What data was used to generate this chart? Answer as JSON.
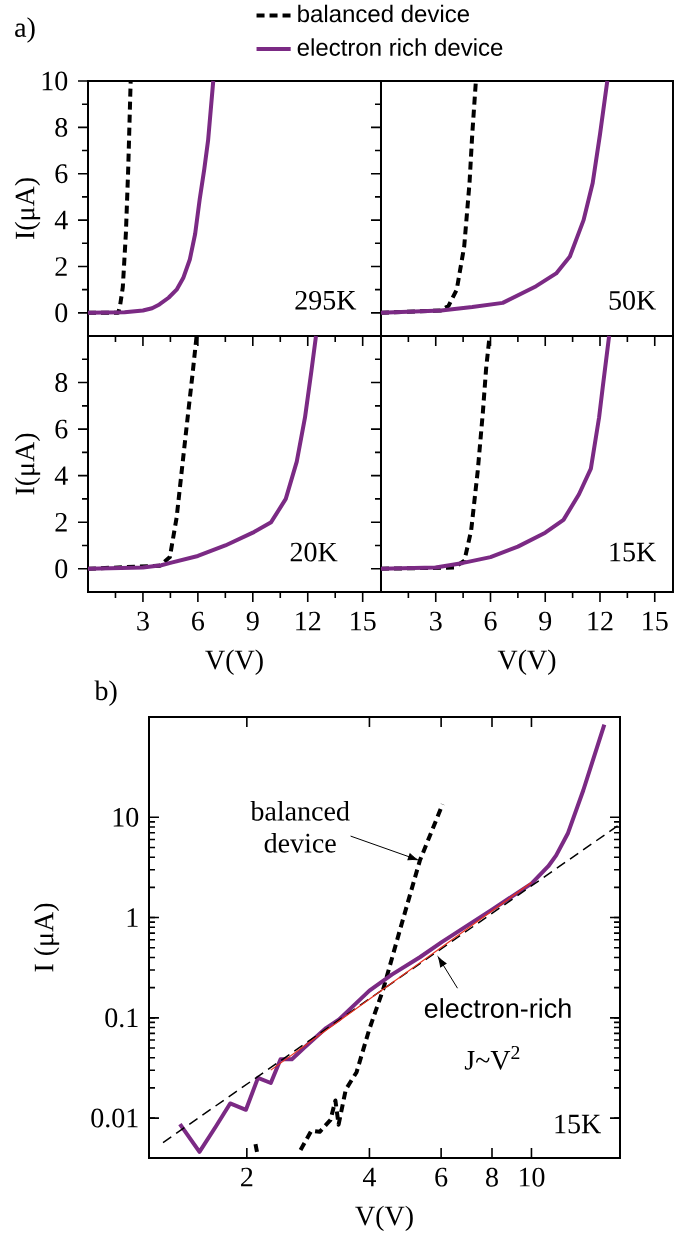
{
  "chart_data": [
    {
      "type": "line",
      "annotations": [
        "a)",
        "295K"
      ],
      "xlim": [
        0,
        16
      ],
      "ylim": [
        -1,
        10
      ],
      "xticks": [
        3,
        6,
        9,
        12,
        15
      ],
      "yticks": [
        0,
        2,
        4,
        6,
        8,
        10
      ],
      "tick_labels": "y",
      "ylabel": "I(μA)",
      "legend": "top",
      "series": [
        {
          "name": "balanced device",
          "color": "#000000",
          "line_style": "dashed",
          "x": [
            0,
            1.65,
            1.75,
            1.9,
            2.07,
            2.2,
            2.33
          ],
          "values": [
            0,
            0,
            0.3,
            1.1,
            3.45,
            6.3,
            10
          ]
        },
        {
          "name": "electron rich device",
          "color": "#7b2a84",
          "line_style": "solid",
          "x": [
            0,
            2,
            3,
            3.5,
            3.9,
            4.4,
            4.84,
            5.2,
            5.56,
            5.85,
            6.1,
            6.35,
            6.56,
            6.84
          ],
          "values": [
            0,
            0.03,
            0.1,
            0.2,
            0.36,
            0.65,
            1.0,
            1.5,
            2.3,
            3.4,
            4.9,
            6.2,
            7.45,
            10
          ]
        }
      ]
    },
    {
      "type": "line",
      "annotations": [
        "50K"
      ],
      "xlim": [
        0,
        16
      ],
      "ylim": [
        -1,
        10
      ],
      "xticks": [
        3,
        6,
        9,
        12,
        15
      ],
      "yticks": [
        0,
        2,
        4,
        6,
        8,
        10
      ],
      "tick_labels": false,
      "series": [
        {
          "color": "#000000",
          "line_style": "dashed",
          "x": [
            0,
            3.27,
            3.7,
            4.15,
            4.56,
            4.85,
            5.0,
            5.2
          ],
          "values": [
            0,
            0.1,
            0.3,
            1.0,
            2.87,
            5.6,
            7.7,
            10
          ]
        },
        {
          "color": "#7b2a84",
          "line_style": "solid",
          "x": [
            0,
            3.3,
            5,
            6.67,
            8.5,
            9.6,
            10.35,
            11.1,
            11.6,
            12.0,
            12.4
          ],
          "values": [
            0,
            0.1,
            0.25,
            0.43,
            1.15,
            1.7,
            2.43,
            4.0,
            5.6,
            7.7,
            10
          ]
        }
      ]
    },
    {
      "type": "line",
      "annotations": [
        "20K"
      ],
      "xlim": [
        0,
        16
      ],
      "ylim": [
        -1,
        10
      ],
      "xticks": [
        3,
        6,
        9,
        12,
        15
      ],
      "yticks": [
        0,
        2,
        4,
        6,
        8
      ],
      "xlabel": "V(V)",
      "ylabel": "I(μA)",
      "series": [
        {
          "color": "#000000",
          "line_style": "dashed",
          "x": [
            0,
            3.93,
            4.47,
            4.84,
            5.16,
            5.47,
            5.7,
            5.93
          ],
          "values": [
            0,
            0.13,
            0.5,
            2.2,
            4.5,
            6.7,
            8.3,
            10
          ]
        },
        {
          "color": "#7b2a84",
          "line_style": "solid",
          "x": [
            0,
            3,
            4,
            4.5,
            6,
            7.5,
            9,
            10,
            10.8,
            11.4,
            11.85,
            12.2,
            12.45
          ],
          "values": [
            0,
            0.05,
            0.15,
            0.25,
            0.55,
            1.0,
            1.55,
            2.0,
            3.0,
            4.6,
            6.5,
            8.5,
            10
          ]
        }
      ]
    },
    {
      "type": "line",
      "annotations": [
        "15K"
      ],
      "xlim": [
        0,
        16
      ],
      "ylim": [
        -1,
        10
      ],
      "xticks": [
        3,
        6,
        9,
        12,
        15
      ],
      "yticks": [
        0,
        2,
        4,
        6,
        8
      ],
      "tick_labels": "x",
      "xlabel": "V(V)",
      "series": [
        {
          "color": "#000000",
          "line_style": "dashed",
          "x": [
            0,
            4.0,
            4.57,
            4.94,
            5.3,
            5.58,
            5.76,
            5.95
          ],
          "values": [
            0,
            0.05,
            0.35,
            1.64,
            4.2,
            6.7,
            8.6,
            10
          ]
        },
        {
          "color": "#7b2a84",
          "line_style": "solid",
          "x": [
            0,
            3,
            4.5,
            6,
            7.5,
            9,
            10,
            10.85,
            11.5,
            11.95,
            12.15,
            12.5
          ],
          "values": [
            0,
            0.05,
            0.25,
            0.5,
            0.95,
            1.55,
            2.1,
            3.2,
            4.3,
            6.5,
            7.8,
            10
          ]
        }
      ]
    },
    {
      "type": "line",
      "log": "xy",
      "xlim": [
        1.15,
        16.5
      ],
      "ylim": [
        0.004,
        100
      ],
      "xticks": [
        2,
        4,
        6,
        8,
        10
      ],
      "yticks": [
        0.01,
        0.1,
        1,
        10
      ],
      "xlabel": "V(V)",
      "ylabel": "I (μA)",
      "annotations": [
        {
          "text": "balanced device",
          "x": 5.32,
          "y": 3.7
        },
        {
          "text": "electron-rich",
          "x": 5.87,
          "y": 0.42
        },
        "J~V$^{2}$",
        "15K",
        "b)"
      ],
      "series": [
        {
          "color": "#000000",
          "line_style": "dashed",
          "x": [
            2.1,
            2.12,
            2.2,
            2.71,
            2.88,
            3.02,
            3.21,
            3.3,
            3.36,
            3.5,
            3.72,
            4.0,
            4.32,
            4.76,
            5.32,
            6.05
          ],
          "values": [
            0.0055,
            0.0045,
            null,
            0.0048,
            0.0075,
            0.0073,
            0.0096,
            0.015,
            0.0086,
            0.0193,
            0.0287,
            0.0776,
            0.19,
            0.767,
            3.7,
            13.5
          ]
        },
        {
          "color": "#7b2a84",
          "line_style": "solid",
          "x": [
            1.37,
            1.53,
            1.68,
            1.82,
            1.99,
            2.13,
            2.29,
            2.42,
            2.58,
            2.77,
            3.13,
            3.37,
            4.0,
            4.54,
            5.32,
            6.02,
            8.0,
            10,
            11.0,
            11.5,
            12.3,
            13.4,
            15.1
          ],
          "values": [
            0.0087,
            0.0046,
            0.0083,
            0.014,
            0.0121,
            0.0252,
            0.0224,
            0.0387,
            0.0387,
            0.0506,
            0.079,
            0.0966,
            0.187,
            0.27,
            0.402,
            0.569,
            1.2,
            2.18,
            3.25,
            4.17,
            6.98,
            18.5,
            84
          ]
        },
        {
          "color": "#000000",
          "line_style": "dashed",
          "x": [
            1.245,
            16.5
          ],
          "values": [
            0.0057,
            8.53
          ]
        },
        {
          "color": "#e8301c",
          "line_style": "solid",
          "x": [
            2.29,
            10
          ],
          "values": [
            0.0301,
            2.24
          ]
        }
      ]
    }
  ]
}
